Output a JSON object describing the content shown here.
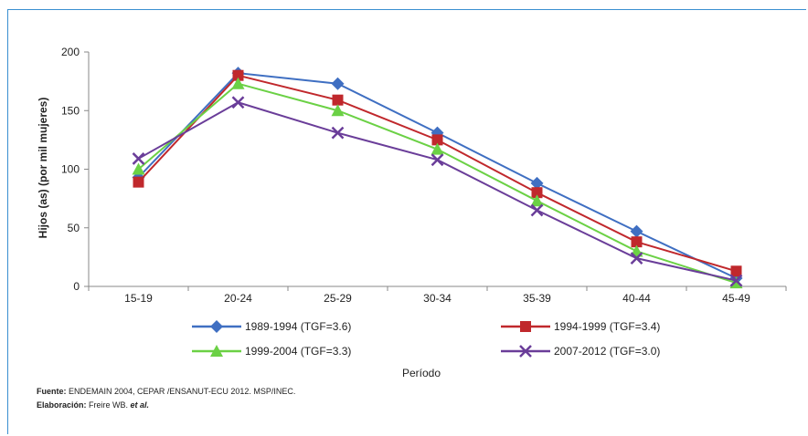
{
  "chart_data": {
    "type": "line",
    "categories": [
      "15-19",
      "20-24",
      "25-29",
      "30-34",
      "35-39",
      "40-44",
      "45-49"
    ],
    "ylim": [
      0,
      200
    ],
    "yticks": [
      0,
      50,
      100,
      150,
      200
    ],
    "ylabel": "Hijos (as) (por mil mujeres)",
    "xlabel": "Período",
    "grid": false,
    "legend_position": "bottom",
    "series": [
      {
        "name": "1989-1994 (TGF=3.6)",
        "color": "#3f6fc2",
        "marker": "diamond",
        "values": [
          93,
          182,
          173,
          131,
          88,
          47,
          7
        ]
      },
      {
        "name": "1994-1999 (TGF=3.4)",
        "color": "#c0282c",
        "marker": "square",
        "values": [
          89,
          180,
          159,
          125,
          80,
          38,
          13
        ]
      },
      {
        "name": "1999-2004 (TGF=3.3)",
        "color": "#6bd145",
        "marker": "triangle",
        "values": [
          100,
          173,
          150,
          117,
          73,
          30,
          3
        ]
      },
      {
        "name": "2007-2012 (TGF=3.0)",
        "color": "#6a3d99",
        "marker": "x",
        "values": [
          109,
          157,
          131,
          108,
          65,
          24,
          5
        ]
      }
    ]
  },
  "footer": {
    "source_label": "Fuente:",
    "source_text": "ENDEMAIN 2004, CEPAR /ENSANUT-ECU 2012. MSP/INEC.",
    "elaboration_label": "Elaboración:",
    "elaboration_text": "Freire WB. ",
    "elaboration_italic": "et al."
  }
}
